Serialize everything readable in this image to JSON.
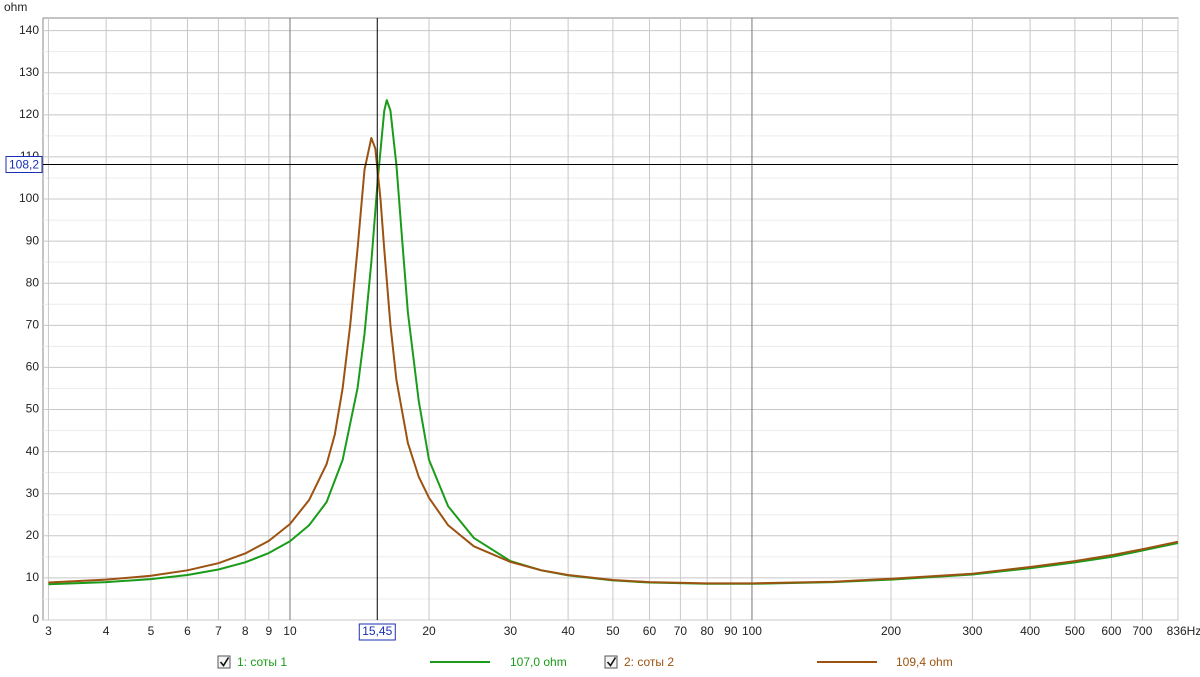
{
  "chart_data": {
    "type": "line",
    "y_label": "ohm",
    "xscale": "log",
    "grid": true,
    "xlim": [
      2.92,
      836
    ],
    "ylim": [
      0,
      143
    ],
    "xticks": [
      3,
      4,
      5,
      6,
      7,
      8,
      9,
      10,
      20,
      30,
      40,
      50,
      60,
      70,
      80,
      90,
      100,
      200,
      300,
      400,
      500,
      600,
      700,
      {
        "value": 836,
        "label": "836Hz"
      }
    ],
    "yticks": [
      0,
      10,
      20,
      30,
      40,
      50,
      60,
      70,
      80,
      90,
      100,
      110,
      120,
      130,
      140
    ],
    "cursor": {
      "x": {
        "value": 15.45,
        "label": "15,45"
      },
      "y": {
        "value": 108.2,
        "label": "108,2"
      }
    },
    "series": [
      {
        "name": "1: соты 1",
        "color": "#1a9c1a",
        "legend_value": "107,0 ohm",
        "x": [
          3,
          4,
          5,
          6,
          7,
          8,
          9,
          10,
          11,
          12,
          13,
          14,
          14.5,
          15,
          15.5,
          16,
          16.2,
          16.5,
          17,
          17.5,
          18,
          19,
          20,
          22,
          25,
          30,
          35,
          40,
          50,
          60,
          80,
          100,
          150,
          200,
          300,
          400,
          500,
          600,
          700,
          836
        ],
        "values": [
          8.5,
          9.0,
          9.7,
          10.7,
          12.0,
          13.7,
          15.9,
          18.7,
          22.5,
          28,
          38,
          55,
          68,
          85,
          105,
          121,
          123.5,
          121,
          108,
          90,
          73,
          52,
          38,
          27,
          19.5,
          14,
          11.8,
          10.6,
          9.4,
          8.9,
          8.6,
          8.6,
          9.0,
          9.6,
          10.8,
          12.3,
          13.7,
          15.0,
          16.5,
          18.3
        ]
      },
      {
        "name": "2: соты 2",
        "color": "#9c5210",
        "legend_value": "109,4 ohm",
        "x": [
          3,
          4,
          5,
          6,
          7,
          8,
          9,
          10,
          11,
          12,
          12.5,
          13,
          13.5,
          14,
          14.5,
          15,
          15.3,
          15.7,
          16,
          16.5,
          17,
          18,
          19,
          20,
          22,
          25,
          30,
          35,
          40,
          50,
          60,
          80,
          100,
          150,
          200,
          300,
          400,
          500,
          600,
          700,
          836
        ],
        "values": [
          8.9,
          9.6,
          10.5,
          11.8,
          13.5,
          15.8,
          18.8,
          22.8,
          28.5,
          37,
          44,
          55,
          70,
          88,
          107,
          114.5,
          112,
          100,
          88,
          70,
          57,
          42,
          34,
          29,
          22.5,
          17.5,
          13.8,
          11.8,
          10.7,
          9.5,
          9.0,
          8.7,
          8.7,
          9.1,
          9.8,
          11.0,
          12.6,
          14.0,
          15.4,
          16.8,
          18.6
        ]
      }
    ]
  }
}
